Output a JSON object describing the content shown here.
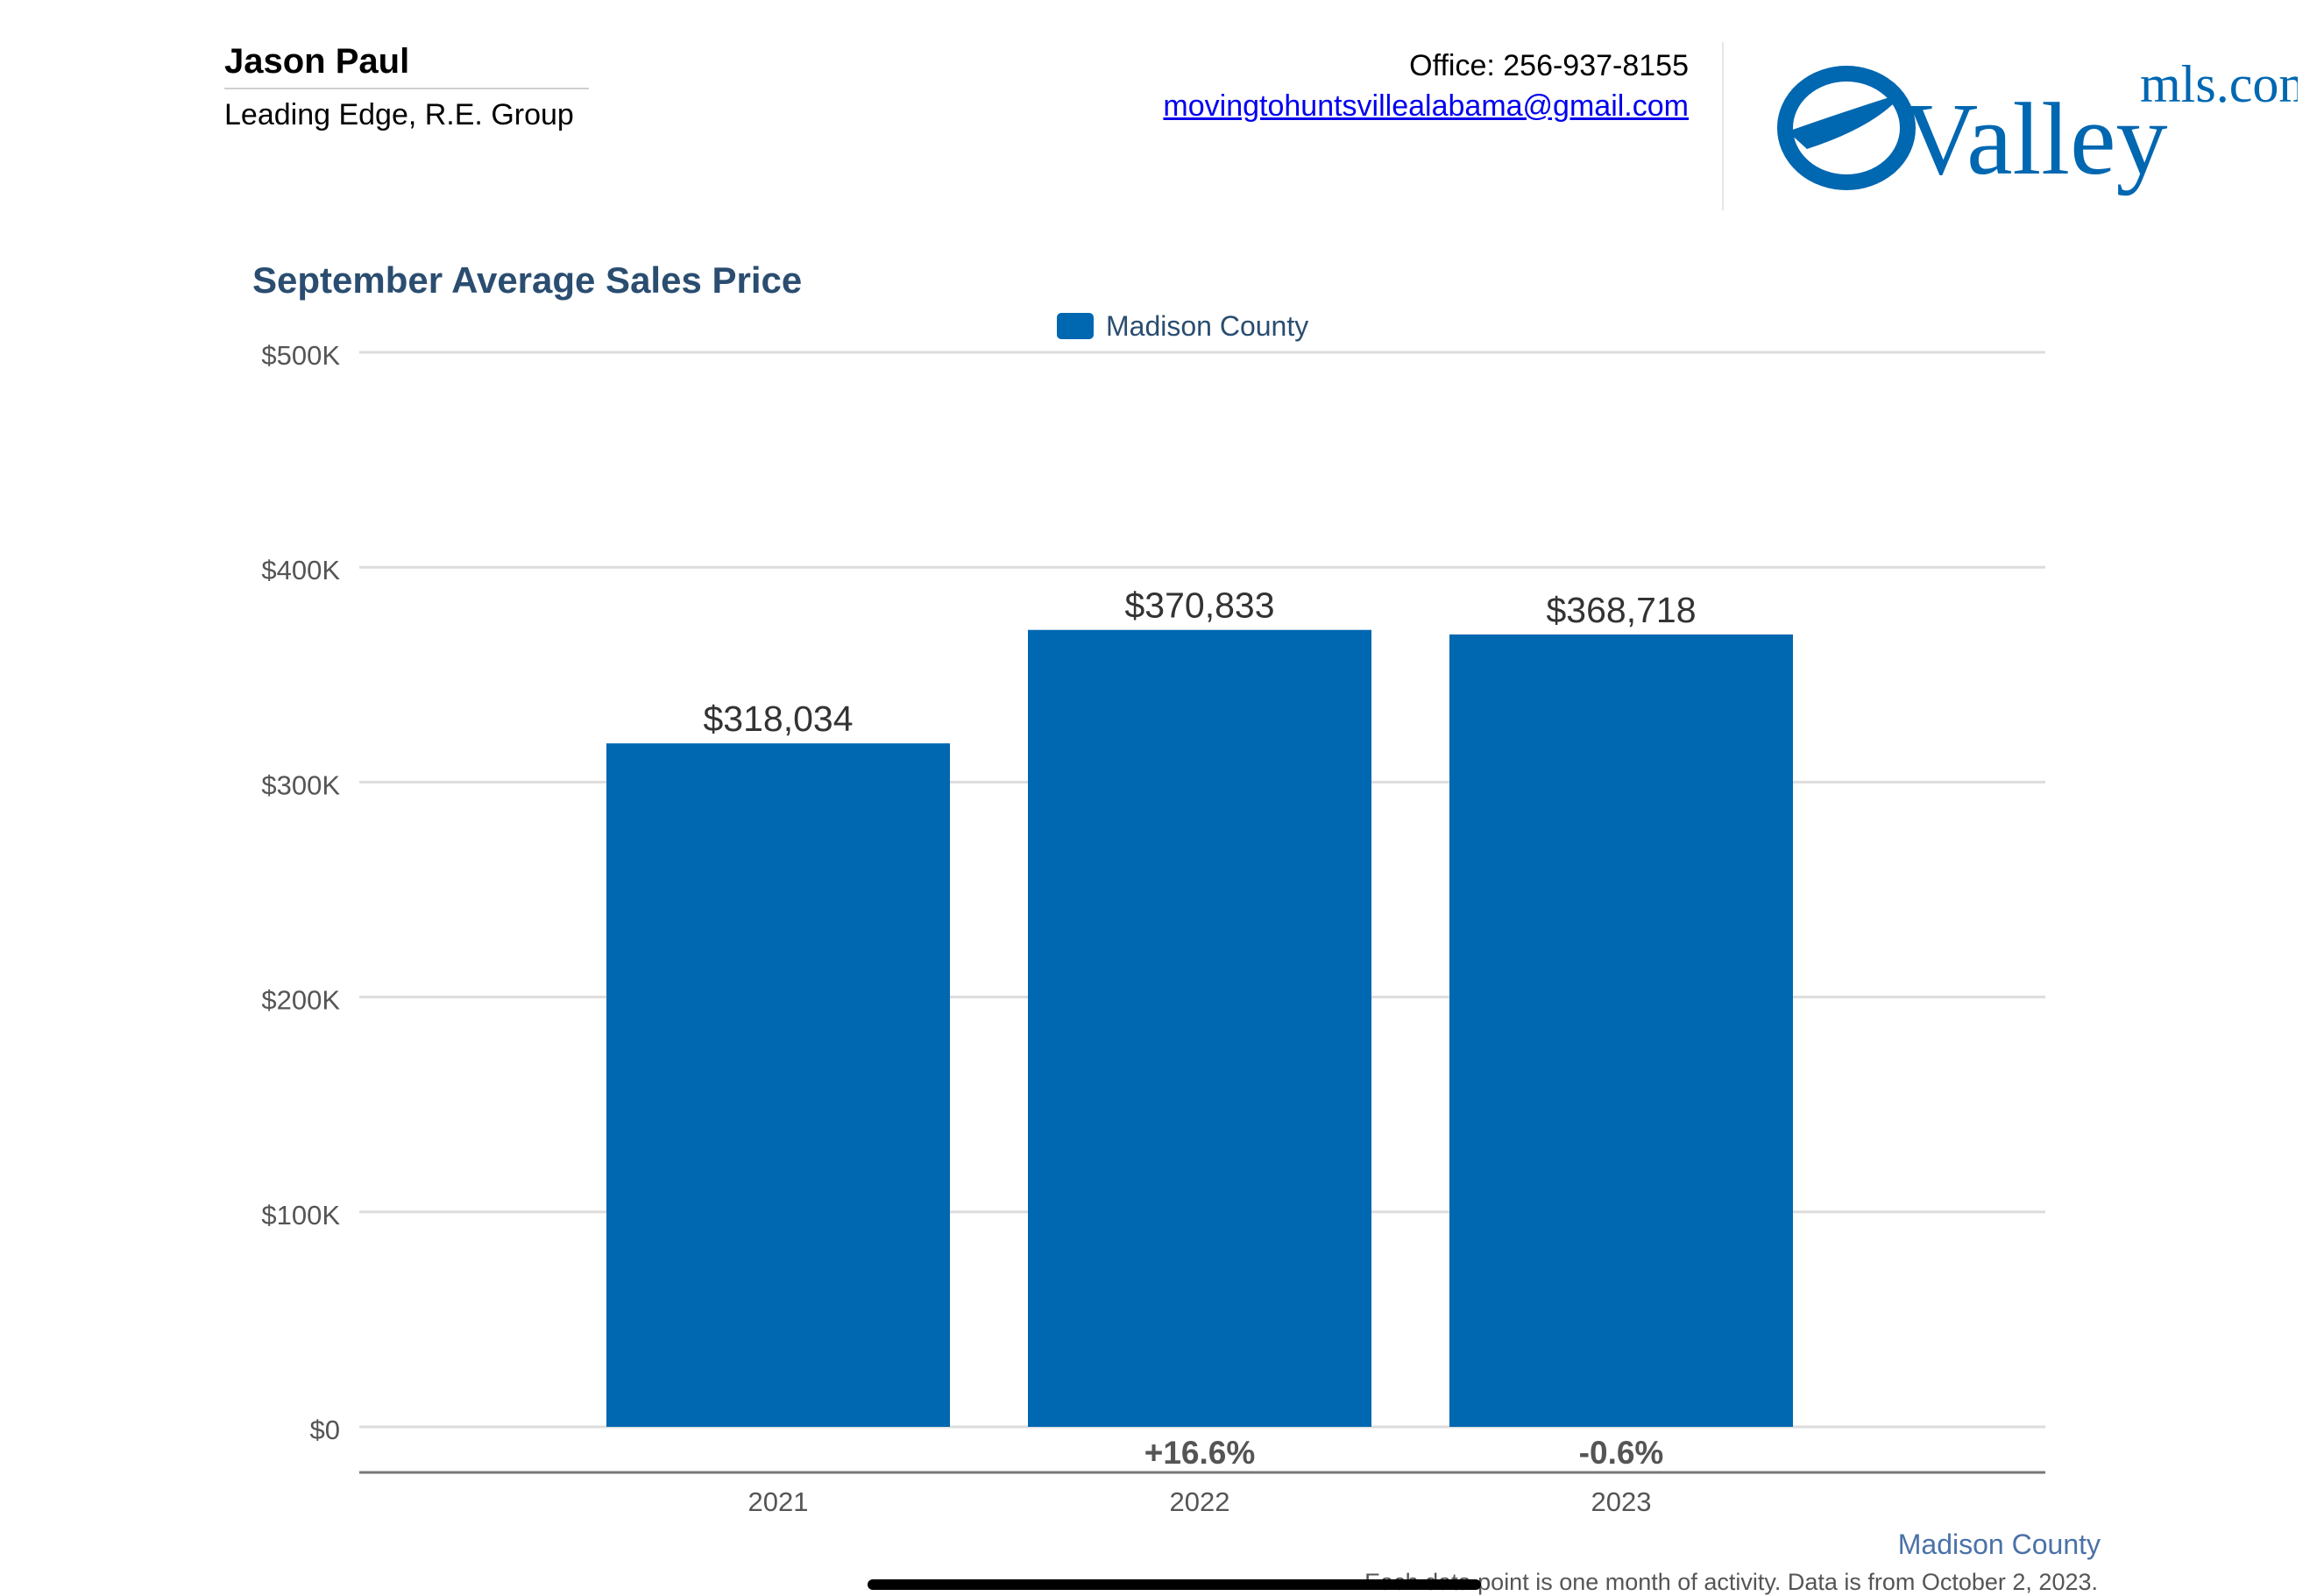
{
  "header": {
    "agent_name": "Jason Paul",
    "agent_company": "Leading Edge, R.E. Group",
    "office": "Office: 256-937-8155",
    "email": "movingtohuntsvillealabama@gmail.com",
    "logo": {
      "word": "Valley",
      "domain": "mls.com"
    }
  },
  "colors": {
    "bar": "#0067b1",
    "title": "#2a4d70",
    "grid": "#dddddd",
    "axis_text": "#555555"
  },
  "chart_data": {
    "type": "bar",
    "title": "September Average Sales Price",
    "legend_position": "top-center",
    "series": [
      {
        "name": "Madison County",
        "values": [
          318034,
          370833,
          368718
        ]
      }
    ],
    "categories": [
      "2021",
      "2022",
      "2023"
    ],
    "data_labels": [
      "$318,034",
      "$370,833",
      "$368,718"
    ],
    "change_labels": [
      "",
      "+16.6%",
      "-0.6%"
    ],
    "yticks": [
      0,
      100000,
      200000,
      300000,
      400000,
      500000
    ],
    "ytick_labels": [
      "$0",
      "$100K",
      "$200K",
      "$300K",
      "$400K",
      "$500K"
    ],
    "ylim": [
      0,
      500000
    ],
    "grid": true
  },
  "footer": {
    "county": "Madison County",
    "note": "Each data point is one month of activity. Data is from October 2, 2023."
  }
}
